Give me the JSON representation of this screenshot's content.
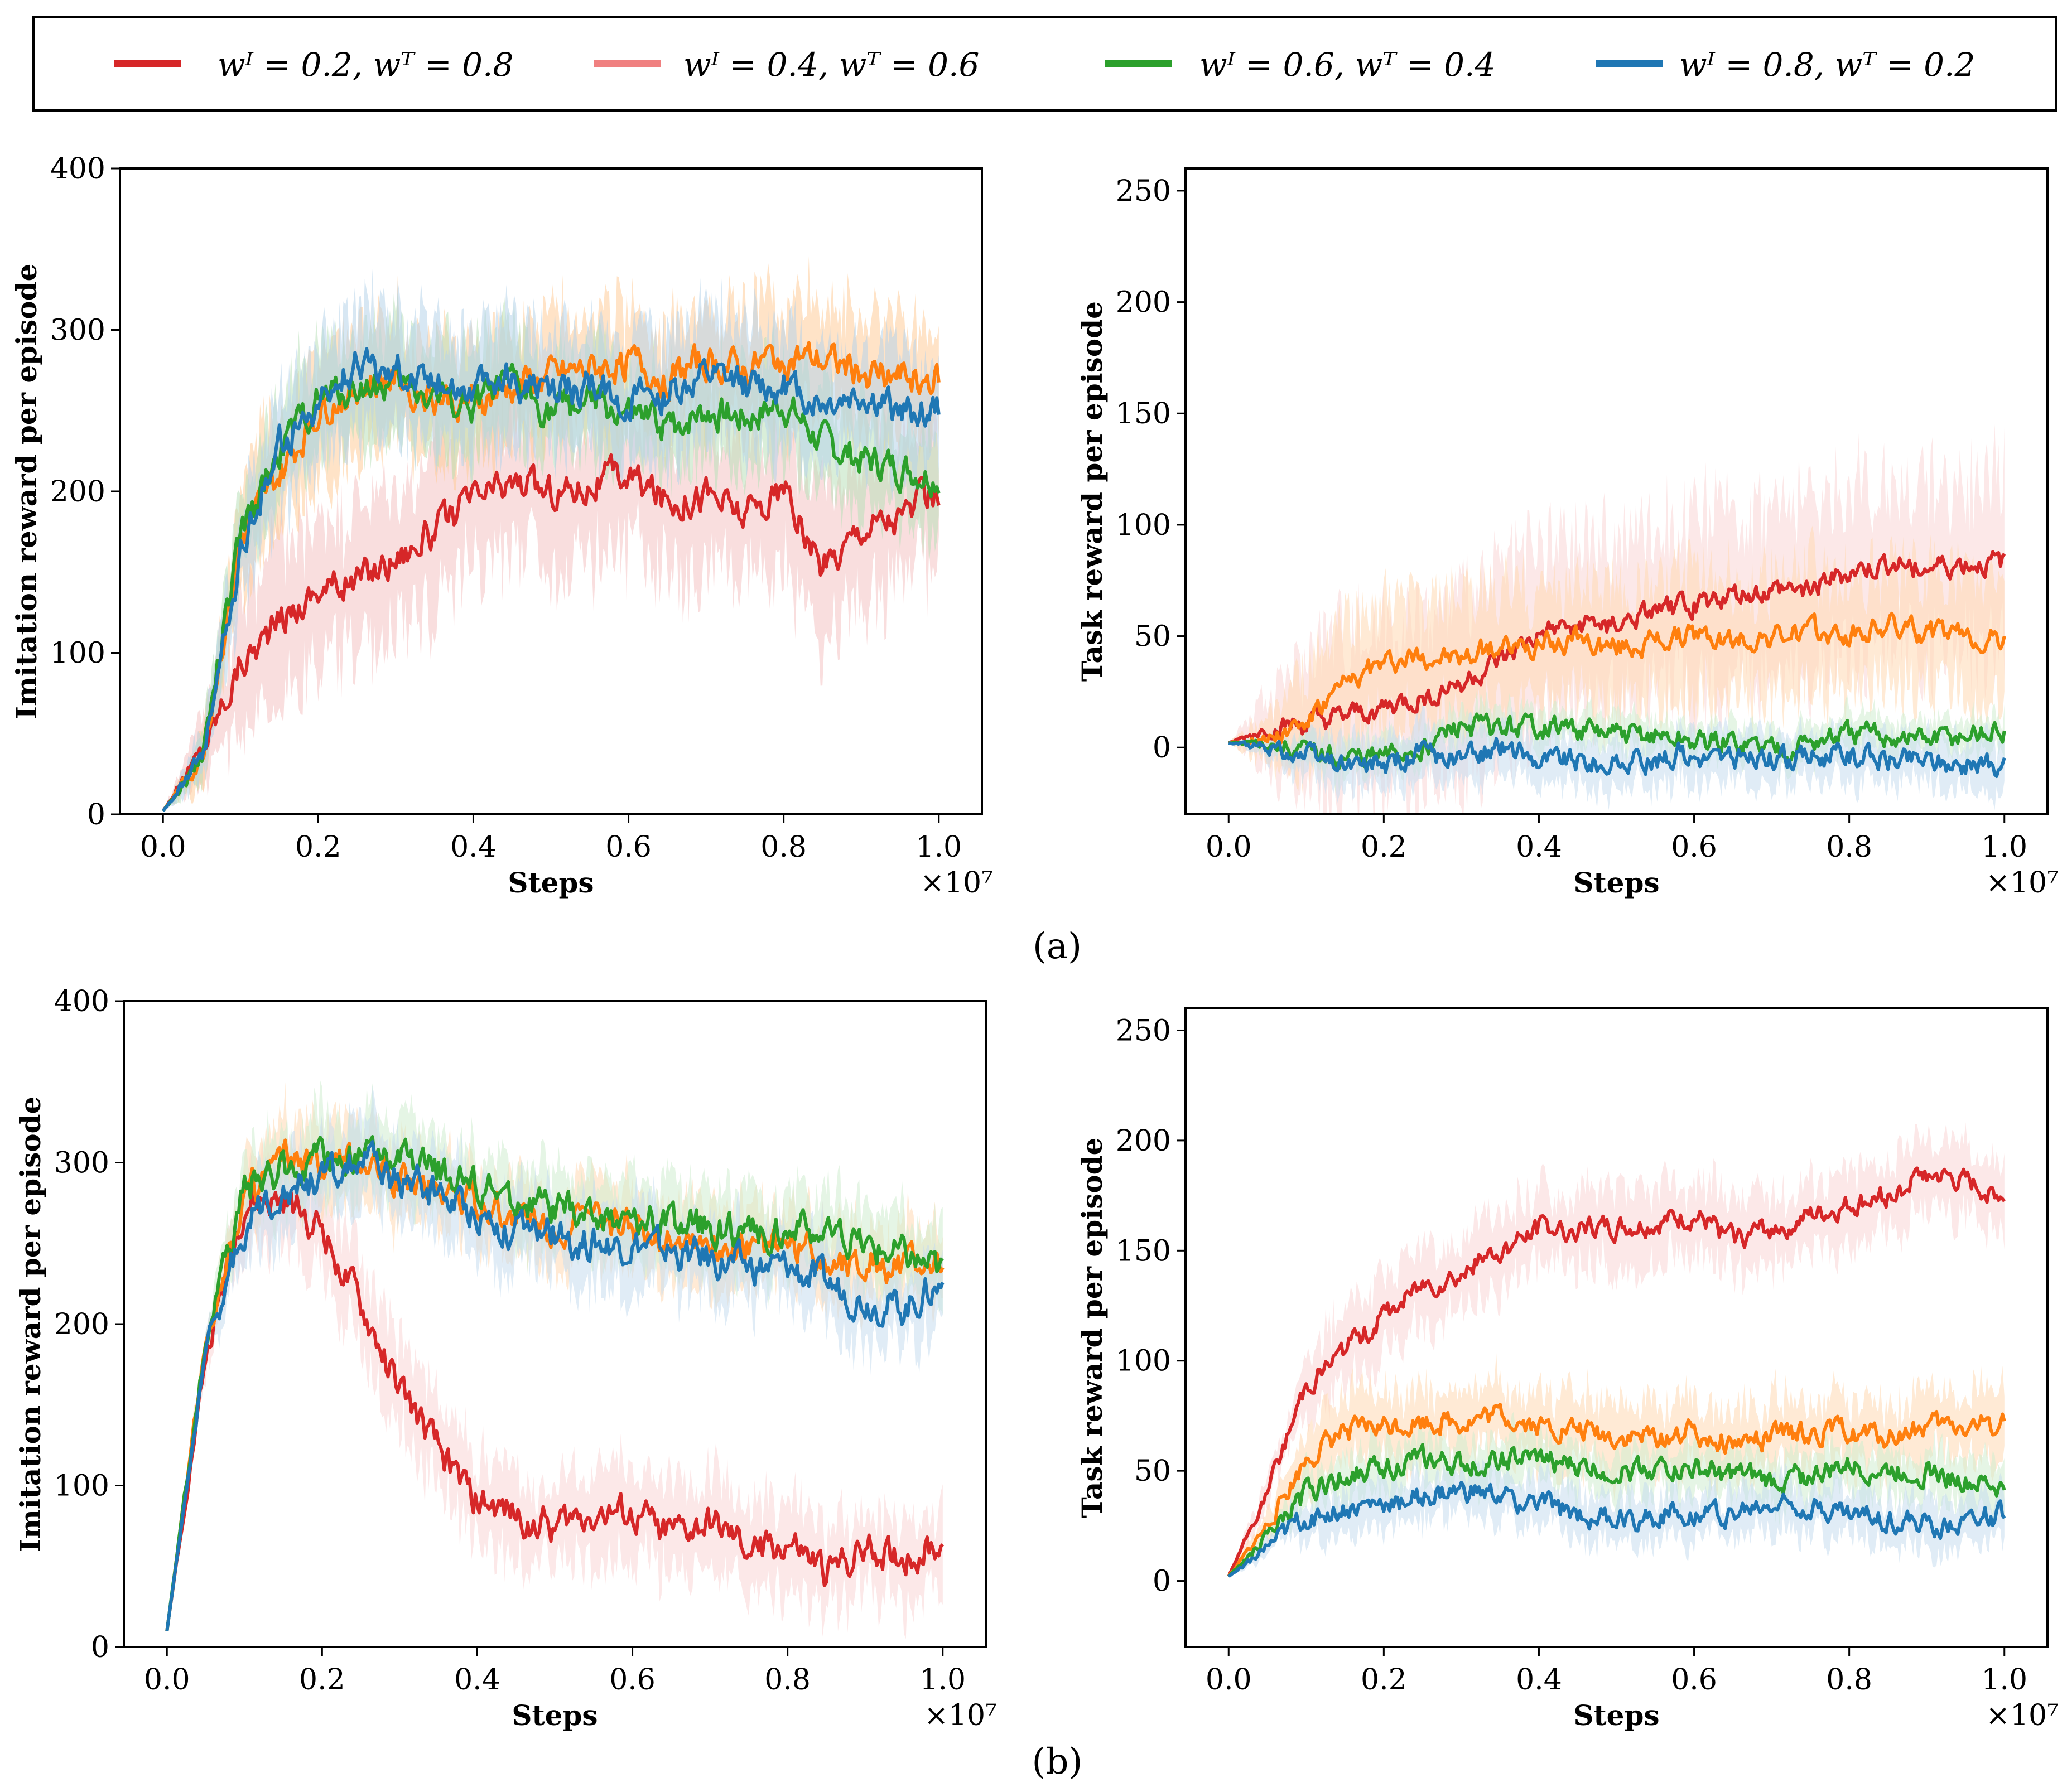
{
  "legend": [
    {
      "label": "wᴵ = 0.2, wᵀ = 0.8",
      "color": "#d62728"
    },
    {
      "label": "wᴵ = 0.4, wᵀ = 0.6",
      "color": "#f08080"
    },
    {
      "label": "wᴵ = 0.6, wᵀ = 0.4",
      "color": "#2ca02c"
    },
    {
      "label": "wᴵ = 0.8, wᵀ = 0.2",
      "color": "#1f77b4"
    }
  ],
  "panel_labels": [
    "(a)",
    "(b)"
  ],
  "chart_data": [
    {
      "id": "a-imitation",
      "type": "line",
      "panel": "(a)",
      "xlabel": "Steps",
      "ylabel": "Imitation reward per episode",
      "x_exponent": "×10⁷",
      "xlim": [
        0.0,
        1.0
      ],
      "ylim": [
        0,
        400
      ],
      "xticks": [
        0.0,
        0.2,
        0.4,
        0.6,
        0.8,
        1.0
      ],
      "xtick_labels": [
        "0.0",
        "0.2",
        "0.4",
        "0.6",
        "0.8",
        "1.0"
      ],
      "yticks": [
        0,
        100,
        200,
        300,
        400
      ],
      "ytick_labels": [
        "0",
        "100",
        "200",
        "300",
        "400"
      ],
      "x": [
        0.0,
        0.05,
        0.1,
        0.15,
        0.2,
        0.25,
        0.3,
        0.35,
        0.4,
        0.45,
        0.5,
        0.55,
        0.6,
        0.65,
        0.7,
        0.75,
        0.8,
        0.85,
        0.9,
        0.95,
        1.0
      ],
      "series": [
        {
          "name": "wI=0.2, wT=0.8",
          "color": "#d62728",
          "band_color": "#f4c2c2",
          "band_width": 60,
          "values": [
            2,
            40,
            95,
            120,
            140,
            145,
            160,
            175,
            195,
            205,
            200,
            205,
            210,
            195,
            200,
            185,
            200,
            150,
            180,
            185,
            200
          ]
        },
        {
          "name": "wI=0.4, wT=0.6",
          "color": "#ff7f0e",
          "band_color": "#ffcc99",
          "band_width": 45,
          "values": [
            2,
            35,
            170,
            210,
            250,
            265,
            270,
            260,
            255,
            265,
            270,
            275,
            280,
            270,
            280,
            275,
            285,
            280,
            275,
            270,
            270
          ]
        },
        {
          "name": "wI=0.6, wT=0.4",
          "color": "#2ca02c",
          "band_color": "#b9e0b9",
          "band_width": 40,
          "values": [
            2,
            35,
            170,
            225,
            255,
            265,
            265,
            260,
            255,
            265,
            250,
            255,
            245,
            240,
            250,
            245,
            255,
            230,
            220,
            215,
            210
          ]
        },
        {
          "name": "wI=0.8, wT=0.2",
          "color": "#1f77b4",
          "band_color": "#b7d3ea",
          "band_width": 45,
          "values": [
            2,
            35,
            160,
            230,
            250,
            280,
            275,
            270,
            265,
            270,
            260,
            265,
            255,
            260,
            270,
            265,
            265,
            255,
            260,
            250,
            250
          ]
        }
      ]
    },
    {
      "id": "a-task",
      "type": "line",
      "panel": "(a)",
      "xlabel": "Steps",
      "ylabel": "Task reward per episode",
      "x_exponent": "×10⁷",
      "xlim": [
        0.0,
        1.0
      ],
      "ylim": [
        -30,
        260
      ],
      "xticks": [
        0.0,
        0.2,
        0.4,
        0.6,
        0.8,
        1.0
      ],
      "xtick_labels": [
        "0.0",
        "0.2",
        "0.4",
        "0.6",
        "0.8",
        "1.0"
      ],
      "yticks": [
        0,
        50,
        100,
        150,
        200,
        250
      ],
      "ytick_labels": [
        "0",
        "50",
        "100",
        "150",
        "200",
        "250"
      ],
      "x": [
        0.0,
        0.05,
        0.1,
        0.15,
        0.2,
        0.25,
        0.3,
        0.35,
        0.4,
        0.45,
        0.5,
        0.55,
        0.6,
        0.65,
        0.7,
        0.75,
        0.8,
        0.85,
        0.9,
        0.95,
        1.0
      ],
      "series": [
        {
          "name": "wI=0.2, wT=0.8",
          "color": "#d62728",
          "band_color": "#f9d6d6",
          "band_width": 50,
          "values": [
            2,
            8,
            10,
            13,
            18,
            22,
            30,
            38,
            50,
            55,
            55,
            60,
            65,
            68,
            70,
            72,
            78,
            82,
            80,
            82,
            82
          ]
        },
        {
          "name": "wI=0.4, wT=0.6",
          "color": "#ff7f0e",
          "band_color": "#ffd9b3",
          "band_width": 35,
          "values": [
            2,
            5,
            12,
            28,
            38,
            42,
            40,
            45,
            45,
            48,
            45,
            48,
            50,
            48,
            50,
            52,
            50,
            55,
            52,
            50,
            48
          ]
        },
        {
          "name": "wI=0.6, wT=0.4",
          "color": "#2ca02c",
          "band_color": "#cfeccf",
          "band_width": 10,
          "values": [
            2,
            2,
            -3,
            -5,
            -5,
            0,
            10,
            8,
            10,
            8,
            5,
            5,
            2,
            2,
            0,
            2,
            5,
            5,
            3,
            5,
            7
          ]
        },
        {
          "name": "wI=0.8, wT=0.2",
          "color": "#1f77b4",
          "band_color": "#c6dcee",
          "band_width": 14,
          "values": [
            2,
            0,
            -5,
            -8,
            -8,
            -3,
            -5,
            0,
            -5,
            -5,
            -8,
            -5,
            -3,
            -5,
            -5,
            -3,
            -3,
            -5,
            -5,
            -7,
            -8
          ]
        }
      ]
    },
    {
      "id": "b-imitation",
      "type": "line",
      "panel": "(b)",
      "xlabel": "Steps",
      "ylabel": "Imitation reward per episode",
      "x_exponent": "×10⁷",
      "xlim": [
        0.0,
        1.0
      ],
      "ylim": [
        0,
        400
      ],
      "xticks": [
        0.0,
        0.2,
        0.4,
        0.6,
        0.8,
        1.0
      ],
      "xtick_labels": [
        "0.0",
        "0.2",
        "0.4",
        "0.6",
        "0.8",
        "1.0"
      ],
      "yticks": [
        0,
        100,
        200,
        300,
        400
      ],
      "ytick_labels": [
        "0",
        "100",
        "200",
        "300",
        "400"
      ],
      "x": [
        0.0,
        0.05,
        0.1,
        0.15,
        0.2,
        0.25,
        0.3,
        0.35,
        0.4,
        0.45,
        0.5,
        0.55,
        0.6,
        0.65,
        0.7,
        0.75,
        0.8,
        0.85,
        0.9,
        0.95,
        1.0
      ],
      "series": [
        {
          "name": "wI=0.2, wT=0.8",
          "color": "#d62728",
          "band_color": "#f9d6d6",
          "band_width": 35,
          "values": [
            10,
            180,
            275,
            275,
            260,
            210,
            160,
            120,
            90,
            80,
            75,
            85,
            80,
            70,
            75,
            60,
            65,
            45,
            60,
            55,
            62
          ]
        },
        {
          "name": "wI=0.4, wT=0.6",
          "color": "#ff7f0e",
          "band_color": "#ffd9b3",
          "band_width": 30,
          "values": [
            10,
            190,
            280,
            300,
            295,
            300,
            290,
            285,
            275,
            265,
            260,
            262,
            260,
            255,
            250,
            245,
            250,
            240,
            238,
            235,
            235
          ]
        },
        {
          "name": "wI=0.6, wT=0.4",
          "color": "#2ca02c",
          "band_color": "#cfeccf",
          "band_width": 30,
          "values": [
            10,
            190,
            285,
            295,
            300,
            305,
            300,
            295,
            285,
            275,
            270,
            265,
            265,
            262,
            260,
            255,
            260,
            255,
            250,
            245,
            235
          ]
        },
        {
          "name": "wI=0.8, wT=0.2",
          "color": "#1f77b4",
          "band_color": "#c6dcee",
          "band_width": 30,
          "values": [
            10,
            185,
            260,
            285,
            290,
            300,
            290,
            280,
            270,
            255,
            255,
            250,
            250,
            245,
            240,
            235,
            235,
            225,
            215,
            210,
            225
          ]
        }
      ]
    },
    {
      "id": "b-task",
      "type": "line",
      "panel": "(b)",
      "xlabel": "Steps",
      "ylabel": "Task reward per episode",
      "x_exponent": "×10⁷",
      "xlim": [
        0.0,
        1.0
      ],
      "ylim": [
        -30,
        260
      ],
      "xticks": [
        0.0,
        0.2,
        0.4,
        0.6,
        0.8,
        1.0
      ],
      "xtick_labels": [
        "0.0",
        "0.2",
        "0.4",
        "0.6",
        "0.8",
        "1.0"
      ],
      "yticks": [
        0,
        50,
        100,
        150,
        200,
        250
      ],
      "ytick_labels": [
        "0",
        "50",
        "100",
        "150",
        "200",
        "250"
      ],
      "x": [
        0.0,
        0.05,
        0.1,
        0.15,
        0.2,
        0.25,
        0.3,
        0.35,
        0.4,
        0.45,
        0.5,
        0.55,
        0.6,
        0.65,
        0.7,
        0.75,
        0.8,
        0.85,
        0.9,
        0.95,
        1.0
      ],
      "series": [
        {
          "name": "wI=0.2, wT=0.8",
          "color": "#d62728",
          "band_color": "#f9d6d6",
          "band_width": 22,
          "values": [
            2,
            40,
            90,
            105,
            120,
            135,
            140,
            150,
            160,
            160,
            160,
            162,
            165,
            155,
            160,
            165,
            170,
            175,
            185,
            180,
            175
          ]
        },
        {
          "name": "wI=0.4, wT=0.6",
          "color": "#ff7f0e",
          "band_color": "#ffd9b3",
          "band_width": 20,
          "values": [
            2,
            25,
            55,
            68,
            70,
            72,
            72,
            75,
            70,
            68,
            65,
            65,
            68,
            62,
            65,
            68,
            68,
            65,
            70,
            70,
            72
          ]
        },
        {
          "name": "wI=0.6, wT=0.4",
          "color": "#2ca02c",
          "band_color": "#cfeccf",
          "band_width": 14,
          "values": [
            2,
            20,
            40,
            48,
            52,
            55,
            52,
            55,
            55,
            52,
            50,
            52,
            50,
            48,
            45,
            48,
            52,
            50,
            50,
            45,
            42
          ]
        },
        {
          "name": "wI=0.8, wT=0.2",
          "color": "#1f77b4",
          "band_color": "#c6dcee",
          "band_width": 14,
          "values": [
            2,
            15,
            28,
            32,
            35,
            38,
            40,
            38,
            35,
            30,
            28,
            30,
            32,
            30,
            35,
            35,
            30,
            28,
            25,
            28,
            30
          ]
        }
      ]
    }
  ]
}
